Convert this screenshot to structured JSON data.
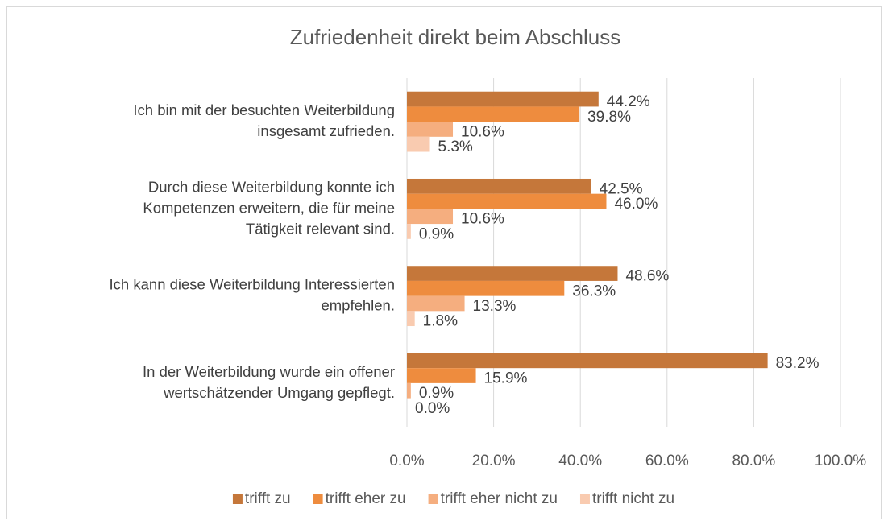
{
  "chart_data": {
    "type": "bar",
    "orientation": "horizontal",
    "title": "Zufriedenheit direkt beim Abschluss",
    "categories": [
      [
        "Ich bin mit der besuchten Weiterbildung",
        "insgesamt zufrieden."
      ],
      [
        "Durch diese Weiterbildung konnte ich",
        "Kompetenzen erweitern, die für meine",
        "Tätigkeit relevant sind."
      ],
      [
        "Ich kann diese Weiterbildung Interessierten",
        "empfehlen."
      ],
      [
        "In der Weiterbildung wurde ein offener",
        "wertschätzender Umgang gepflegt."
      ]
    ],
    "series": [
      {
        "name": "trifft zu",
        "color": "#c5773a",
        "values": [
          44.2,
          42.5,
          48.6,
          83.2
        ],
        "value_labels": [
          "44.2%",
          "42.5%",
          "48.6%",
          "83.2%"
        ]
      },
      {
        "name": "trifft eher zu",
        "color": "#ee8c3e",
        "values": [
          39.8,
          46.0,
          36.3,
          15.9
        ],
        "value_labels": [
          "39.8%",
          "46.0%",
          "36.3%",
          "15.9%"
        ]
      },
      {
        "name": "trifft eher nicht zu",
        "color": "#f5ae7f",
        "values": [
          10.6,
          10.6,
          13.3,
          0.9
        ],
        "value_labels": [
          "10.6%",
          "10.6%",
          "13.3%",
          "0.9%"
        ]
      },
      {
        "name": "trifft nicht zu",
        "color": "#f9cbb0",
        "values": [
          5.3,
          0.9,
          1.8,
          0.0
        ],
        "value_labels": [
          "5.3%",
          "0.9%",
          "1.8%",
          "0.0%"
        ]
      }
    ],
    "xlim": [
      0,
      100
    ],
    "xticks": [
      {
        "value": 0,
        "label": "0.0%"
      },
      {
        "value": 20,
        "label": "20.0%"
      },
      {
        "value": 40,
        "label": "40.0%"
      },
      {
        "value": 60,
        "label": "60.0%"
      },
      {
        "value": 80,
        "label": "80.0%"
      },
      {
        "value": 100,
        "label": "100.0%"
      }
    ],
    "grid": true,
    "legend": "bottom"
  }
}
